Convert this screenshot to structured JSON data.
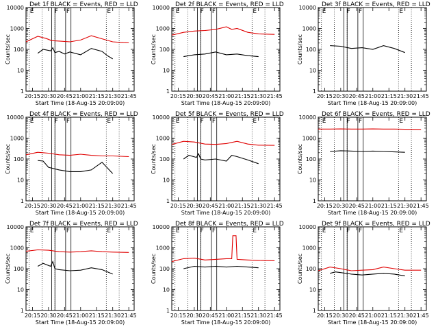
{
  "figure": {
    "title_pattern": "Det {n}f BLACK = Events, RED = LLD",
    "xlabel": "Start Time (18-Aug-15 20:09:00)",
    "ylabel": "Counts/sec"
  },
  "chart_data": [
    {
      "type": "line",
      "title": "Det 1f BLACK = Events, RED = LLD",
      "xlabel": "Start Time (18-Aug-15 20:09:00)",
      "ylabel": "Counts/sec",
      "x_ticks": [
        "20:15",
        "20:30",
        "20:45",
        "21:00",
        "21:15",
        "21:30",
        "21:45"
      ],
      "y_ticks": [
        "1",
        "10",
        "100",
        "1000",
        "10000"
      ],
      "yscale": "log",
      "ylim": [
        1,
        10000
      ],
      "xlim": [
        "20:09",
        "21:50"
      ],
      "markers": [
        {
          "label": "E",
          "time": "20:12"
        },
        {
          "label": "F",
          "time": "20:35"
        },
        {
          "label": "F",
          "time": "20:46"
        },
        {
          "label": "E",
          "time": "21:24"
        }
      ],
      "dotted_lines": [
        "20:12",
        "20:24",
        "20:36",
        "21:24",
        "21:36"
      ],
      "solid_lines": [
        "20:33",
        "20:36",
        "20:46",
        "20:51"
      ],
      "series": [
        {
          "name": "Events",
          "color": "#000000",
          "x": [
            "20:20",
            "20:25",
            "20:32",
            "20:34",
            "20:36",
            "20:40",
            "20:45",
            "20:50",
            "21:00",
            "21:10",
            "21:20",
            "21:25",
            "21:30"
          ],
          "y": [
            65,
            100,
            85,
            120,
            70,
            80,
            60,
            75,
            55,
            110,
            80,
            50,
            35
          ]
        },
        {
          "name": "LLD",
          "color": "#e00000",
          "x": [
            "20:09",
            "20:20",
            "20:28",
            "20:33",
            "20:40",
            "20:50",
            "21:00",
            "21:10",
            "21:20",
            "21:30",
            "21:40",
            "21:45"
          ],
          "y": [
            230,
            420,
            330,
            260,
            250,
            230,
            280,
            450,
            320,
            230,
            210,
            205
          ]
        }
      ]
    },
    {
      "type": "line",
      "title": "Det 2f BLACK = Events, RED = LLD",
      "xlabel": "Start Time (18-Aug-15 20:09:00)",
      "ylabel": "Counts/sec",
      "x_ticks": [
        "20:15",
        "20:30",
        "20:45",
        "21:00",
        "21:15",
        "21:30",
        "21:45"
      ],
      "y_ticks": [
        "1",
        "10",
        "100",
        "1000",
        "10000"
      ],
      "yscale": "log",
      "ylim": [
        1,
        10000
      ],
      "xlim": [
        "20:09",
        "21:50"
      ],
      "markers": [
        {
          "label": "E",
          "time": "20:12"
        },
        {
          "label": "F",
          "time": "20:35"
        },
        {
          "label": "F",
          "time": "20:46"
        },
        {
          "label": "E",
          "time": "21:24"
        }
      ],
      "dotted_lines": [
        "20:12",
        "20:24",
        "20:36",
        "21:24",
        "21:36"
      ],
      "solid_lines": [
        "20:33",
        "20:36",
        "20:46",
        "20:51"
      ],
      "series": [
        {
          "name": "Events",
          "color": "#000000",
          "x": [
            "20:20",
            "20:30",
            "20:40",
            "20:50",
            "21:00",
            "21:10",
            "21:20",
            "21:30"
          ],
          "y": [
            45,
            55,
            60,
            75,
            55,
            60,
            50,
            45
          ]
        },
        {
          "name": "LLD",
          "color": "#e00000",
          "x": [
            "20:09",
            "20:20",
            "20:30",
            "20:40",
            "20:50",
            "21:00",
            "21:05",
            "21:10",
            "21:20",
            "21:30",
            "21:45"
          ],
          "y": [
            480,
            650,
            750,
            800,
            900,
            1200,
            900,
            1000,
            650,
            550,
            520
          ]
        }
      ]
    },
    {
      "type": "line",
      "title": "Det 3f BLACK = Events, RED = LLD",
      "xlabel": "Start Time (18-Aug-15 20:09:00)",
      "ylabel": "Counts/sec",
      "x_ticks": [
        "20:15",
        "20:30",
        "20:45",
        "21:00",
        "21:15",
        "21:30",
        "21:45"
      ],
      "y_ticks": [
        "1",
        "10",
        "100",
        "1000",
        "10000"
      ],
      "yscale": "log",
      "ylim": [
        1,
        10000
      ],
      "xlim": [
        "20:09",
        "21:50"
      ],
      "markers": [
        {
          "label": "E",
          "time": "20:12"
        },
        {
          "label": "F",
          "time": "20:35"
        },
        {
          "label": "F",
          "time": "20:46"
        },
        {
          "label": "E",
          "time": "21:24"
        }
      ],
      "dotted_lines": [
        "20:12",
        "20:24",
        "20:36",
        "21:24",
        "21:36"
      ],
      "solid_lines": [
        "20:33",
        "20:36",
        "20:46",
        "20:51"
      ],
      "series": [
        {
          "name": "Events",
          "color": "#000000",
          "x": [
            "20:20",
            "20:30",
            "20:40",
            "20:50",
            "21:00",
            "21:10",
            "21:20",
            "21:30"
          ],
          "y": [
            150,
            140,
            110,
            120,
            100,
            150,
            110,
            70
          ]
        }
      ]
    },
    {
      "type": "line",
      "title": "Det 4f BLACK = Events, RED = LLD",
      "xlabel": "Start Time (18-Aug-15 20:09:00)",
      "ylabel": "Counts/sec",
      "x_ticks": [
        "20:15",
        "20:30",
        "20:45",
        "21:00",
        "21:15",
        "21:30",
        "21:45"
      ],
      "y_ticks": [
        "1",
        "10",
        "100",
        "1000",
        "10000"
      ],
      "yscale": "log",
      "ylim": [
        1,
        10000
      ],
      "xlim": [
        "20:09",
        "21:50"
      ],
      "markers": [
        {
          "label": "E",
          "time": "20:12"
        },
        {
          "label": "F",
          "time": "20:35"
        },
        {
          "label": "F",
          "time": "20:46"
        },
        {
          "label": "E",
          "time": "21:24"
        }
      ],
      "dotted_lines": [
        "20:12",
        "20:24",
        "20:36",
        "21:24",
        "21:36"
      ],
      "solid_lines": [
        "20:33",
        "20:36",
        "20:46",
        "20:51"
      ],
      "series": [
        {
          "name": "Events",
          "color": "#000000",
          "x": [
            "20:20",
            "20:25",
            "20:30",
            "20:40",
            "20:50",
            "21:00",
            "21:10",
            "21:20",
            "21:30"
          ],
          "y": [
            85,
            80,
            40,
            30,
            25,
            25,
            30,
            70,
            20
          ]
        },
        {
          "name": "LLD",
          "color": "#e00000",
          "x": [
            "20:09",
            "20:20",
            "20:30",
            "20:40",
            "20:50",
            "21:00",
            "21:10",
            "21:20",
            "21:30",
            "21:45"
          ],
          "y": [
            160,
            210,
            190,
            160,
            150,
            170,
            150,
            140,
            140,
            130
          ]
        }
      ]
    },
    {
      "type": "line",
      "title": "Det 5f BLACK = Events, RED = LLD",
      "xlabel": "Start Time (18-Aug-15 20:09:00)",
      "ylabel": "Counts/sec",
      "x_ticks": [
        "20:15",
        "20:30",
        "20:45",
        "21:00",
        "21:15",
        "21:30",
        "21:45"
      ],
      "y_ticks": [
        "1",
        "10",
        "100",
        "1000",
        "10000"
      ],
      "yscale": "log",
      "ylim": [
        1,
        10000
      ],
      "xlim": [
        "20:09",
        "21:50"
      ],
      "markers": [
        {
          "label": "E",
          "time": "20:12"
        },
        {
          "label": "F",
          "time": "20:35"
        },
        {
          "label": "F",
          "time": "20:46"
        },
        {
          "label": "E",
          "time": "21:24"
        }
      ],
      "dotted_lines": [
        "20:12",
        "20:24",
        "20:36",
        "21:24",
        "21:36"
      ],
      "solid_lines": [
        "20:33",
        "20:36",
        "20:46",
        "20:51"
      ],
      "series": [
        {
          "name": "Events",
          "color": "#000000",
          "x": [
            "20:20",
            "20:25",
            "20:32",
            "20:34",
            "20:36",
            "20:40",
            "20:50",
            "21:00",
            "21:05",
            "21:10",
            "21:20",
            "21:30"
          ],
          "y": [
            100,
            150,
            120,
            180,
            100,
            90,
            100,
            80,
            150,
            130,
            90,
            60
          ]
        },
        {
          "name": "LLD",
          "color": "#e00000",
          "x": [
            "20:09",
            "20:20",
            "20:30",
            "20:40",
            "20:50",
            "21:00",
            "21:10",
            "21:20",
            "21:30",
            "21:45"
          ],
          "y": [
            500,
            700,
            650,
            520,
            500,
            550,
            700,
            520,
            460,
            450
          ]
        }
      ]
    },
    {
      "type": "line",
      "title": "Det 6f BLACK = Events, RED = LLD",
      "xlabel": "Start Time (18-Aug-15 20:09:00)",
      "ylabel": "Counts/sec",
      "x_ticks": [
        "20:15",
        "20:30",
        "20:45",
        "21:00",
        "21:15",
        "21:30",
        "21:45"
      ],
      "y_ticks": [
        "1",
        "10",
        "100",
        "1000",
        "10000"
      ],
      "yscale": "log",
      "ylim": [
        1,
        10000
      ],
      "xlim": [
        "20:09",
        "21:50"
      ],
      "markers": [
        {
          "label": "E",
          "time": "20:12"
        },
        {
          "label": "F",
          "time": "20:35"
        },
        {
          "label": "F",
          "time": "20:46"
        },
        {
          "label": "E",
          "time": "21:24"
        }
      ],
      "dotted_lines": [
        "20:12",
        "20:24",
        "20:36",
        "21:24",
        "21:36"
      ],
      "solid_lines": [
        "20:33",
        "20:36",
        "20:46",
        "20:51"
      ],
      "series": [
        {
          "name": "Events",
          "color": "#000000",
          "x": [
            "20:20",
            "20:30",
            "20:40",
            "20:50",
            "21:00",
            "21:10",
            "21:20",
            "21:30"
          ],
          "y": [
            230,
            250,
            240,
            230,
            240,
            230,
            220,
            210
          ]
        },
        {
          "name": "LLD",
          "color": "#e00000",
          "x": [
            "20:09",
            "20:20",
            "20:30",
            "20:40",
            "20:50",
            "21:00",
            "21:10",
            "21:20",
            "21:30",
            "21:45"
          ],
          "y": [
            2700,
            2700,
            2750,
            2700,
            2700,
            2750,
            2700,
            2700,
            2650,
            2600
          ]
        }
      ]
    },
    {
      "type": "line",
      "title": "Det 7f BLACK = Events, RED = LLD",
      "xlabel": "Start Time (18-Aug-15 20:09:00)",
      "ylabel": "Counts/sec",
      "x_ticks": [
        "20:15",
        "20:30",
        "20:45",
        "21:00",
        "21:15",
        "21:30",
        "21:45"
      ],
      "y_ticks": [
        "1",
        "10",
        "100",
        "1000",
        "10000"
      ],
      "yscale": "log",
      "ylim": [
        1,
        10000
      ],
      "xlim": [
        "20:09",
        "21:50"
      ],
      "markers": [
        {
          "label": "E",
          "time": "20:12"
        },
        {
          "label": "F",
          "time": "20:35"
        },
        {
          "label": "F",
          "time": "20:46"
        },
        {
          "label": "E",
          "time": "21:24"
        }
      ],
      "dotted_lines": [
        "20:12",
        "20:24",
        "20:36",
        "21:24",
        "21:36"
      ],
      "solid_lines": [
        "20:33",
        "20:36",
        "20:46",
        "20:51"
      ],
      "series": [
        {
          "name": "Events",
          "color": "#000000",
          "x": [
            "20:20",
            "20:25",
            "20:32",
            "20:34",
            "20:36",
            "20:40",
            "20:50",
            "21:00",
            "21:10",
            "21:20",
            "21:30"
          ],
          "y": [
            130,
            180,
            130,
            220,
            100,
            90,
            80,
            85,
            110,
            90,
            55
          ]
        },
        {
          "name": "LLD",
          "color": "#e00000",
          "x": [
            "20:09",
            "20:20",
            "20:30",
            "20:40",
            "20:50",
            "21:00",
            "21:10",
            "21:20",
            "21:30",
            "21:45"
          ],
          "y": [
            680,
            800,
            760,
            650,
            620,
            650,
            720,
            650,
            620,
            600
          ]
        }
      ]
    },
    {
      "type": "line",
      "title": "Det 8f BLACK = Events, RED = LLD",
      "xlabel": "Start Time (18-Aug-15 20:09:00)",
      "ylabel": "Counts/sec",
      "x_ticks": [
        "20:15",
        "20:30",
        "20:45",
        "21:00",
        "21:15",
        "21:30",
        "21:45"
      ],
      "y_ticks": [
        "1",
        "10",
        "100",
        "1000",
        "10000"
      ],
      "yscale": "log",
      "ylim": [
        1,
        10000
      ],
      "xlim": [
        "20:09",
        "21:50"
      ],
      "markers": [
        {
          "label": "E",
          "time": "20:12"
        },
        {
          "label": "F",
          "time": "20:35"
        },
        {
          "label": "F",
          "time": "20:46"
        },
        {
          "label": "E",
          "time": "21:24"
        }
      ],
      "dotted_lines": [
        "20:12",
        "20:24",
        "20:36",
        "21:24",
        "21:36"
      ],
      "solid_lines": [
        "20:33",
        "20:36",
        "20:46",
        "20:51"
      ],
      "series": [
        {
          "name": "Events",
          "color": "#000000",
          "x": [
            "20:20",
            "20:30",
            "20:40",
            "20:50",
            "21:00",
            "21:10",
            "21:20",
            "21:30"
          ],
          "y": [
            100,
            130,
            120,
            130,
            120,
            130,
            120,
            110
          ]
        },
        {
          "name": "LLD",
          "color": "#e00000",
          "x": [
            "20:09",
            "20:20",
            "20:30",
            "20:40",
            "20:50",
            "21:00",
            "21:05",
            "21:06",
            "21:09",
            "21:10",
            "21:20",
            "21:30",
            "21:45"
          ],
          "y": [
            220,
            300,
            320,
            260,
            280,
            300,
            300,
            3800,
            3800,
            280,
            260,
            250,
            240
          ]
        }
      ]
    },
    {
      "type": "line",
      "title": "Det 9f BLACK = Events, RED = LLD",
      "xlabel": "Start Time (18-Aug-15 20:09:00)",
      "ylabel": "Counts/sec",
      "x_ticks": [
        "20:15",
        "20:30",
        "20:45",
        "21:00",
        "21:15",
        "21:30",
        "21:45"
      ],
      "y_ticks": [
        "1",
        "10",
        "100",
        "1000",
        "10000"
      ],
      "yscale": "log",
      "ylim": [
        1,
        10000
      ],
      "xlim": [
        "20:09",
        "21:50"
      ],
      "markers": [
        {
          "label": "E",
          "time": "20:12"
        },
        {
          "label": "F",
          "time": "20:35"
        },
        {
          "label": "F",
          "time": "20:46"
        },
        {
          "label": "E",
          "time": "21:24"
        }
      ],
      "dotted_lines": [
        "20:12",
        "20:24",
        "20:36",
        "21:24",
        "21:36"
      ],
      "solid_lines": [
        "20:33",
        "20:36",
        "20:46",
        "20:51"
      ],
      "series": [
        {
          "name": "Events",
          "color": "#000000",
          "x": [
            "20:20",
            "20:25",
            "20:30",
            "20:40",
            "20:50",
            "21:00",
            "21:10",
            "21:20",
            "21:30"
          ],
          "y": [
            60,
            70,
            65,
            55,
            50,
            55,
            60,
            55,
            45
          ]
        },
        {
          "name": "LLD",
          "color": "#e00000",
          "x": [
            "20:09",
            "20:20",
            "20:30",
            "20:40",
            "20:50",
            "21:00",
            "21:10",
            "21:20",
            "21:30",
            "21:45"
          ],
          "y": [
            80,
            120,
            100,
            80,
            85,
            90,
            120,
            100,
            85,
            85
          ]
        }
      ]
    }
  ]
}
